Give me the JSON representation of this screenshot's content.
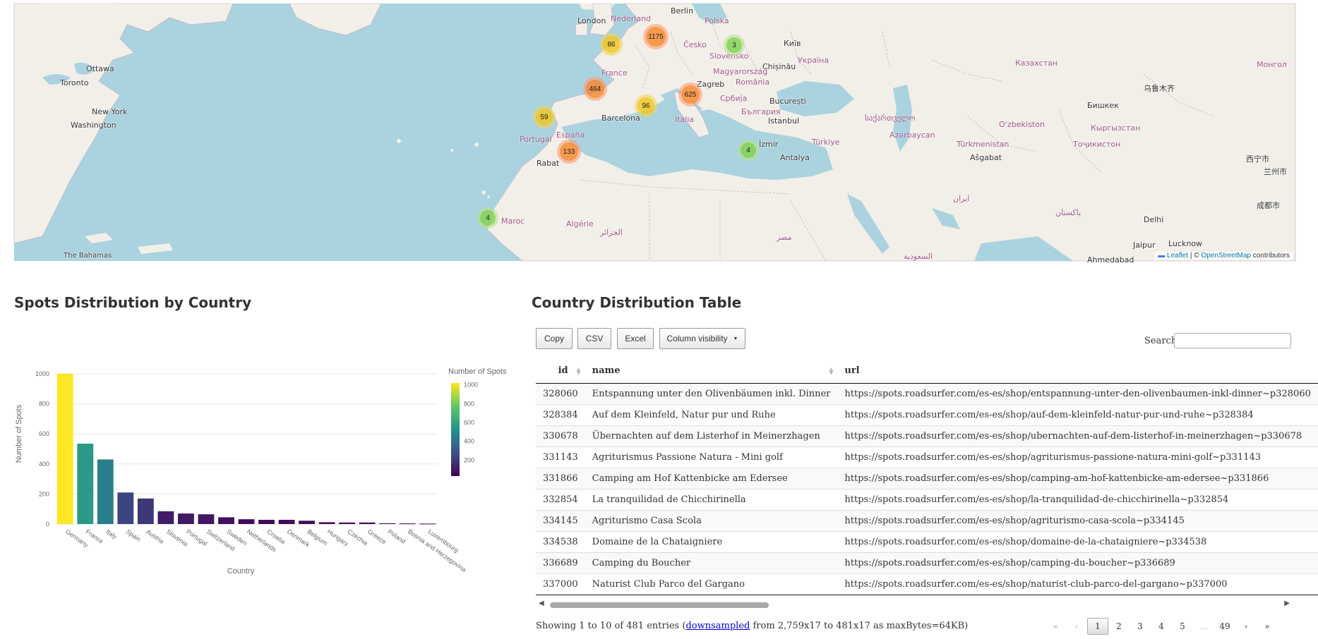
{
  "map": {
    "cities": [
      "Ottawa",
      "Toronto",
      "New York",
      "Washington",
      "The Bahamas",
      "London",
      "Nederland",
      "Berlin",
      "Polska",
      "Česko",
      "Slovensko",
      "Київ",
      "Україна",
      "Magyarország",
      "Zagreb",
      "România",
      "Chișinău",
      "București",
      "Србија",
      "България",
      "Istanbul",
      "France",
      "Barcelona",
      "España",
      "Portugal",
      "Italia",
      "Rabat",
      "Algérie",
      "Maroc",
      "Türkiye",
      "Antalya",
      "İzmir",
      "საქართველო",
      "Azərbaycan",
      "Türkmenistan",
      "Ašgabat",
      "Oʻzbekiston",
      "Казахстан",
      "Бишкек",
      "Кыргызстан",
      "Тоҷикистон",
      "Монгол",
      "Delhi",
      "Lucknow",
      "Jaipur",
      "Ahmedabad",
      "پاکستان",
      "ایران",
      "الجزائر",
      "مصر",
      "السعودية",
      "乌鲁木齐",
      "西宁市",
      "成都市",
      "兰州市"
    ],
    "clusters": [
      {
        "count": "86",
        "size": "med"
      },
      {
        "count": "1175",
        "size": "large"
      },
      {
        "count": "3",
        "size": "small"
      },
      {
        "count": "464",
        "size": "large"
      },
      {
        "count": "625",
        "size": "large"
      },
      {
        "count": "96",
        "size": "med"
      },
      {
        "count": "59",
        "size": "med"
      },
      {
        "count": "133",
        "size": "large"
      },
      {
        "count": "4",
        "size": "small"
      },
      {
        "count": "4",
        "size": "small"
      }
    ],
    "attribution": {
      "leaflet": "Leaflet",
      "sep": " | © ",
      "osm": "OpenStreetMap",
      "suffix": " contributors"
    }
  },
  "chart_heading": "Spots Distribution by Country",
  "table_heading": "Country Distribution Table",
  "chart_data": {
    "type": "bar",
    "categories": [
      "Germany",
      "France",
      "Italy",
      "Spain",
      "Austria",
      "Slovenia",
      "Portugal",
      "Switzerland",
      "Sweden",
      "Netherlands",
      "Croatia",
      "Denmark",
      "Belgium",
      "Hungary",
      "Czechia",
      "Greece",
      "Poland",
      "Bosnia and Herzegovina",
      "Luxembourg"
    ],
    "values": [
      1020,
      535,
      430,
      210,
      170,
      85,
      70,
      65,
      45,
      32,
      28,
      28,
      22,
      12,
      10,
      10,
      5,
      4,
      3
    ],
    "xlabel": "Country",
    "ylabel": "Number of Spots",
    "ylim": [
      0,
      1000
    ],
    "yticks": [
      0,
      200,
      400,
      600,
      800,
      1000
    ],
    "colorbar": {
      "title": "Number of Spots",
      "ticks": [
        200,
        400,
        600,
        800,
        1000
      ],
      "colors": [
        "#440154",
        "#3b528b",
        "#21918c",
        "#5ec962",
        "#fde725"
      ]
    },
    "grid": true
  },
  "buttons": {
    "copy": "Copy",
    "csv": "CSV",
    "excel": "Excel",
    "colvis": "Column visibility"
  },
  "search_label": "Search:",
  "table": {
    "headers": [
      "id",
      "name",
      "url"
    ],
    "rows": [
      [
        "328060",
        "Entspannung unter den Olivenbäumen inkl. Dinner",
        "https://spots.roadsurfer.com/es-es/shop/entspannung-unter-den-olivenbaumen-inkl-dinner~p328060"
      ],
      [
        "328384",
        "Auf dem Kleinfeld, Natur pur und Ruhe",
        "https://spots.roadsurfer.com/es-es/shop/auf-dem-kleinfeld-natur-pur-und-ruhe~p328384"
      ],
      [
        "330678",
        "Übernachten auf dem Listerhof in Meinerzhagen",
        "https://spots.roadsurfer.com/es-es/shop/ubernachten-auf-dem-listerhof-in-meinerzhagen~p330678"
      ],
      [
        "331143",
        "Agriturismus Passione Natura - Mini golf",
        "https://spots.roadsurfer.com/es-es/shop/agriturismus-passione-natura-mini-golf~p331143"
      ],
      [
        "331866",
        "Camping am Hof Kattenbicke am Edersee",
        "https://spots.roadsurfer.com/es-es/shop/camping-am-hof-kattenbicke-am-edersee~p331866"
      ],
      [
        "332854",
        "La tranquilidad de Chicchirinella",
        "https://spots.roadsurfer.com/es-es/shop/la-tranquilidad-de-chicchirinella~p332854"
      ],
      [
        "334145",
        "Agriturismo Casa Scola",
        "https://spots.roadsurfer.com/es-es/shop/agriturismo-casa-scola~p334145"
      ],
      [
        "334538",
        "Domaine de la Chataigniere",
        "https://spots.roadsurfer.com/es-es/shop/domaine-de-la-chataigniere~p334538"
      ],
      [
        "336689",
        "Camping du Boucher",
        "https://spots.roadsurfer.com/es-es/shop/camping-du-boucher~p336689"
      ],
      [
        "337000",
        "Naturist Club Parco del Gargano",
        "https://spots.roadsurfer.com/es-es/shop/naturist-club-parco-del-gargano~p337000"
      ]
    ]
  },
  "info": {
    "prefix": "Showing 1 to 10 of 481 entries (",
    "link": "downsampled",
    "suffix": " from 2,759x17 to 481x17 as maxBytes=64KB)"
  },
  "pager": [
    "«",
    "‹",
    "1",
    "2",
    "3",
    "4",
    "5",
    "…",
    "49",
    "›",
    "»"
  ]
}
